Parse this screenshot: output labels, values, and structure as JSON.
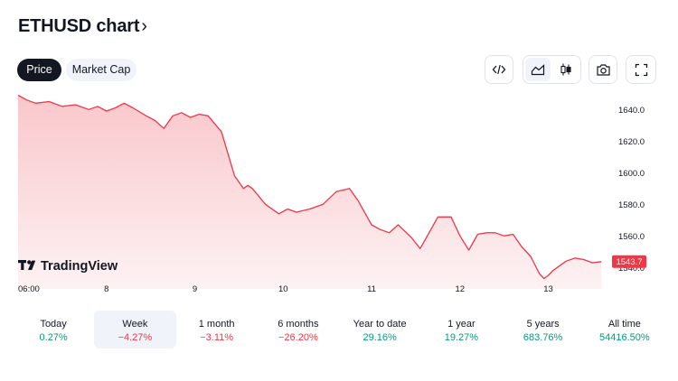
{
  "header": {
    "title": "ETHUSD chart",
    "title_chevron": "›"
  },
  "tabs": [
    {
      "label": "Price",
      "active": true
    },
    {
      "label": "Market Cap",
      "active": false
    }
  ],
  "toolbar": {
    "icons": [
      "embed-code-icon",
      "area-chart-icon",
      "candles-icon",
      "camera-icon",
      "fullscreen-icon"
    ],
    "active_chart_style": "area"
  },
  "watermark": {
    "text": "TradingView",
    "logo": "17"
  },
  "colors": {
    "line": "#f23645",
    "area_top": "#f9c7cb",
    "area_bottom": "#fdf2f3",
    "positive": "#089981",
    "negative": "#f23645",
    "price_label_bg": "#f23645"
  },
  "chart_data": {
    "type": "area",
    "title": "",
    "xlabel": "",
    "ylabel": "",
    "x_tick_labels": [
      "06:00",
      "8",
      "9",
      "10",
      "11",
      "12",
      "13"
    ],
    "y_tick_labels": [
      "1540.0",
      "1560.0",
      "1580.0",
      "1600.0",
      "1620.0",
      "1640.0"
    ],
    "y_ticks": [
      1540,
      1560,
      1580,
      1600,
      1620,
      1640
    ],
    "ylim": [
      1531,
      1651
    ],
    "x_range": [
      0,
      6.7
    ],
    "x": [
      0,
      0.1,
      0.2,
      0.35,
      0.5,
      0.65,
      0.8,
      0.9,
      1.0,
      1.1,
      1.2,
      1.3,
      1.45,
      1.55,
      1.65,
      1.75,
      1.85,
      1.95,
      2.05,
      2.15,
      2.3,
      2.45,
      2.55,
      2.6,
      2.65,
      2.8,
      2.95,
      3.05,
      3.15,
      3.3,
      3.45,
      3.6,
      3.75,
      3.85,
      4.0,
      4.1,
      4.2,
      4.3,
      4.45,
      4.55,
      4.75,
      4.9,
      5.0,
      5.1,
      5.2,
      5.3,
      5.4,
      5.5,
      5.6,
      5.7,
      5.8,
      5.9,
      5.95,
      6.0,
      6.05,
      6.1,
      6.2,
      6.3,
      6.4,
      6.5,
      6.6
    ],
    "values": [
      1649,
      1646,
      1644,
      1645,
      1642,
      1643,
      1640,
      1642,
      1639,
      1641,
      1644,
      1641,
      1636,
      1633,
      1628,
      1636,
      1638,
      1635,
      1637,
      1636,
      1626,
      1598,
      1590,
      1592,
      1590,
      1580,
      1574,
      1577,
      1575,
      1577,
      1580,
      1588,
      1590,
      1582,
      1567,
      1564,
      1562,
      1567,
      1559,
      1552,
      1572,
      1572,
      1560,
      1551,
      1561,
      1562,
      1562,
      1560,
      1561,
      1553,
      1547,
      1536,
      1533,
      1535,
      1538,
      1540,
      1544,
      1546,
      1545,
      1543,
      1543.7
    ],
    "last_price_label": "1543.7",
    "grid": false,
    "legend": "none"
  },
  "ranges": [
    {
      "label": "Today",
      "value": "0.27%",
      "trend": "pos",
      "selected": false
    },
    {
      "label": "Week",
      "value": "−4.27%",
      "trend": "neg",
      "selected": true
    },
    {
      "label": "1 month",
      "value": "−3.11%",
      "trend": "neg",
      "selected": false
    },
    {
      "label": "6 months",
      "value": "−26.20%",
      "trend": "neg",
      "selected": false
    },
    {
      "label": "Year to date",
      "value": "29.16%",
      "trend": "pos",
      "selected": false
    },
    {
      "label": "1 year",
      "value": "19.27%",
      "trend": "pos",
      "selected": false
    },
    {
      "label": "5 years",
      "value": "683.76%",
      "trend": "pos",
      "selected": false
    },
    {
      "label": "All time",
      "value": "54416.50%",
      "trend": "pos",
      "selected": false
    }
  ]
}
